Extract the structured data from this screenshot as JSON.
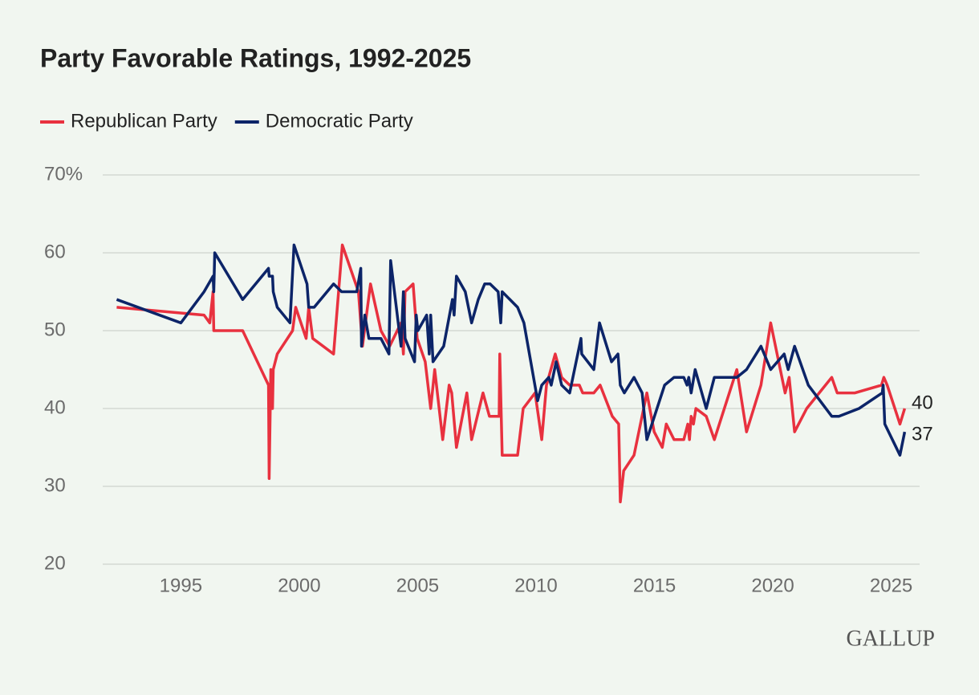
{
  "chart_data": {
    "type": "line",
    "title": "Party Favorable Ratings, 1992-2025",
    "source": "GALLUP",
    "xlim": [
      1991.7,
      2026.2
    ],
    "xticks": [
      1995,
      2000,
      2005,
      2010,
      2015,
      2020,
      2025
    ],
    "ylim": [
      20,
      70
    ],
    "yticks": [
      20,
      30,
      40,
      50,
      60,
      {
        "value": 70,
        "label": "70%"
      }
    ],
    "grid": true,
    "series": [
      {
        "name": "Republican Party",
        "color": "#e8313f",
        "x": [
          1992.29,
          1995.98,
          1996.22,
          1996.36,
          1996.39,
          1997.61,
          1998.7,
          1998.73,
          1998.8,
          1998.87,
          1998.9,
          1999.07,
          1999.72,
          1999.85,
          2000.29,
          2000.4,
          2000.57,
          2001.45,
          2001.82,
          2002.5,
          2002.67,
          2003.01,
          2003.45,
          2003.82,
          2004.3,
          2004.4,
          2004.47,
          2004.81,
          2004.98,
          2005.32,
          2005.55,
          2005.72,
          2006.06,
          2006.33,
          2006.44,
          2006.64,
          2007.08,
          2007.28,
          2007.76,
          2008.03,
          2008.44,
          2008.47,
          2008.57,
          2009.22,
          2009.46,
          2009.96,
          2010.24,
          2010.44,
          2010.81,
          2011.08,
          2011.42,
          2011.83,
          2011.97,
          2012.44,
          2012.71,
          2013.22,
          2013.49,
          2013.56,
          2013.7,
          2014.14,
          2014.68,
          2014.99,
          2015.33,
          2015.5,
          2015.83,
          2016.24,
          2016.41,
          2016.48,
          2016.55,
          2016.65,
          2016.75,
          2017.19,
          2017.53,
          2018.48,
          2018.89,
          2019.5,
          2019.91,
          2020.52,
          2020.69,
          2020.92,
          2021.43,
          2022.49,
          2022.72,
          2023.47,
          2024.59,
          2024.69,
          2024.83,
          2025.37,
          2025.57
        ],
        "values": [
          53,
          52,
          51,
          55,
          50,
          50,
          43,
          31,
          45,
          40,
          45,
          47,
          50,
          53,
          49,
          53,
          49,
          47,
          61,
          55,
          48,
          56,
          50,
          48,
          51,
          47,
          55,
          56,
          49,
          46,
          40,
          45,
          36,
          43,
          42,
          35,
          42,
          36,
          42,
          39,
          39,
          47,
          34,
          34,
          40,
          42,
          36,
          43,
          47,
          44,
          43,
          43,
          42,
          42,
          43,
          39,
          38,
          28,
          32,
          34,
          42,
          37,
          35,
          38,
          36,
          36,
          38,
          36,
          39,
          38,
          40,
          39,
          36,
          45,
          37,
          43,
          51,
          42,
          44,
          37,
          40,
          44,
          42,
          42,
          43,
          44,
          43,
          38,
          40
        ]
      },
      {
        "name": "Democratic Party",
        "color": "#0c2468",
        "x": [
          1992.29,
          1995.0,
          1995.98,
          1996.36,
          1996.39,
          1996.43,
          1997.61,
          1998.7,
          1998.73,
          1998.87,
          1998.9,
          1999.07,
          1999.61,
          1999.78,
          2000.33,
          2000.4,
          2000.63,
          2001.45,
          2001.79,
          2002.43,
          2002.6,
          2002.63,
          2002.77,
          2002.94,
          2003.45,
          2003.79,
          2003.86,
          2004.3,
          2004.4,
          2004.47,
          2004.87,
          2004.94,
          2005.01,
          2005.38,
          2005.49,
          2005.55,
          2005.65,
          2006.1,
          2006.47,
          2006.54,
          2006.64,
          2007.01,
          2007.28,
          2007.56,
          2007.83,
          2008.06,
          2008.4,
          2008.51,
          2008.57,
          2009.22,
          2009.49,
          2010.07,
          2010.24,
          2010.54,
          2010.64,
          2010.85,
          2011.08,
          2011.42,
          2011.9,
          2011.93,
          2012.44,
          2012.68,
          2013.19,
          2013.46,
          2013.56,
          2013.73,
          2014.14,
          2014.48,
          2014.68,
          2015.43,
          2015.83,
          2016.24,
          2016.38,
          2016.45,
          2016.55,
          2016.72,
          2017.19,
          2017.53,
          2018.48,
          2018.89,
          2019.5,
          2019.91,
          2020.48,
          2020.65,
          2020.92,
          2021.5,
          2022.49,
          2022.79,
          2023.64,
          2024.62,
          2024.66,
          2024.73,
          2025.37,
          2025.57
        ],
        "values": [
          54,
          51,
          55,
          57,
          55,
          60,
          54,
          58,
          57,
          57,
          55,
          53,
          51,
          61,
          56,
          53,
          53,
          56,
          55,
          55,
          58,
          48,
          52,
          49,
          49,
          47,
          59,
          48,
          55,
          49,
          46,
          52,
          50,
          52,
          47,
          52,
          46,
          48,
          54,
          52,
          57,
          55,
          51,
          54,
          56,
          56,
          55,
          51,
          55,
          53,
          51,
          41,
          43,
          44,
          43,
          46,
          43,
          42,
          49,
          47,
          45,
          51,
          46,
          47,
          43,
          42,
          44,
          42,
          36,
          43,
          44,
          44,
          43,
          44,
          42,
          45,
          40,
          44,
          44,
          45,
          48,
          45,
          47,
          45,
          48,
          43,
          39,
          39,
          40,
          42,
          43,
          38,
          34,
          37
        ]
      }
    ]
  }
}
